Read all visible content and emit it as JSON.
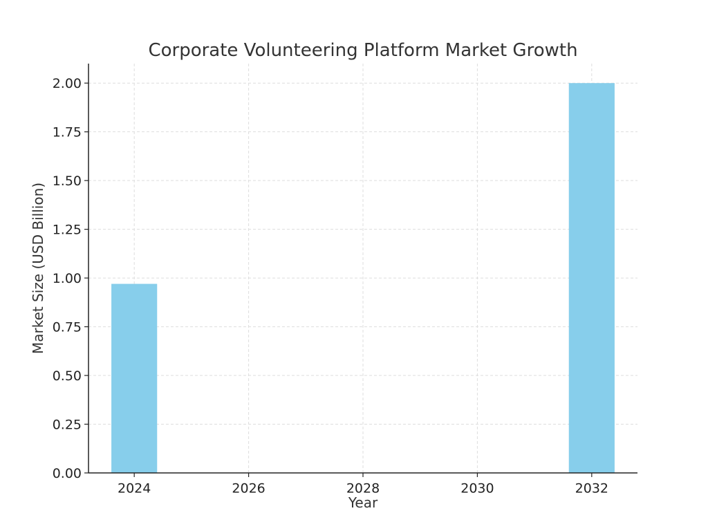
{
  "chart_data": {
    "type": "bar",
    "title": "Corporate Volunteering Platform Market Growth",
    "xlabel": "Year",
    "ylabel": "Market Size (USD Billion)",
    "x": [
      2024,
      2032
    ],
    "values": [
      0.97,
      2.0
    ],
    "bar_width_years": 0.8,
    "xlim": [
      2023.2,
      2032.8
    ],
    "ylim": [
      0,
      2.1
    ],
    "x_ticks": [
      "2024",
      "2026",
      "2028",
      "2030",
      "2032"
    ],
    "y_ticks": [
      "0.00",
      "0.25",
      "0.50",
      "0.75",
      "1.00",
      "1.25",
      "1.50",
      "1.75",
      "2.00"
    ],
    "bar_color": "#87ceeb",
    "grid": true
  }
}
